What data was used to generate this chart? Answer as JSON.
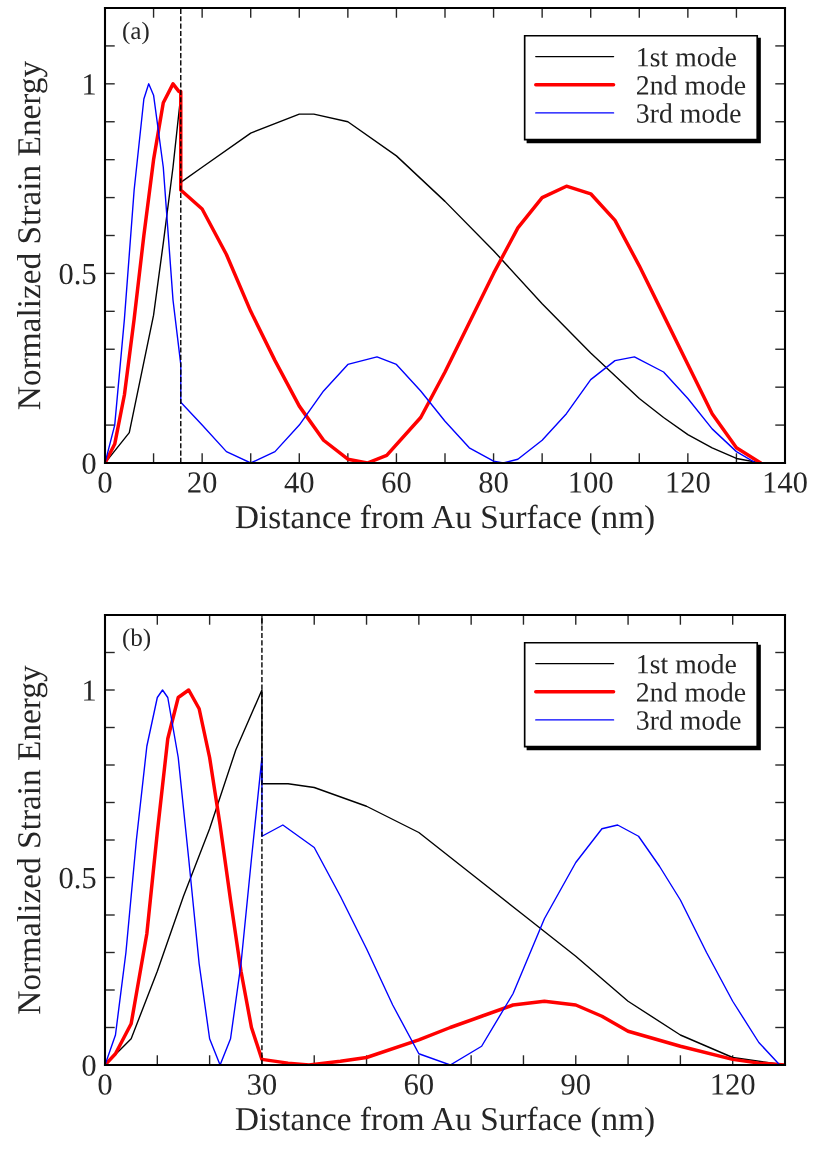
{
  "chart_data": [
    {
      "type": "line",
      "xlabel": "Distance from Au Surface (nm)",
      "ylabel": "Normalized Strain Energy",
      "annotations": [
        "(a)"
      ],
      "legend": "top right",
      "grid": false,
      "xlim": [
        0,
        140
      ],
      "ylim": [
        0,
        1.2
      ],
      "xticks": [
        0,
        {
          "value": 10,
          "label": null
        },
        20,
        {
          "value": 30,
          "label": null
        },
        40,
        {
          "value": 50,
          "label": null
        },
        60,
        {
          "value": 70,
          "label": null
        },
        80,
        {
          "value": 90,
          "label": null
        },
        100,
        {
          "value": 110,
          "label": null
        },
        120,
        {
          "value": 130,
          "label": null
        },
        140
      ],
      "yticks": [
        0,
        {
          "value": 0.1,
          "label": null
        },
        {
          "value": 0.2,
          "label": null
        },
        {
          "value": 0.3,
          "label": null
        },
        {
          "value": 0.4,
          "label": null
        },
        0.5,
        {
          "value": 0.6,
          "label": null
        },
        {
          "value": 0.7,
          "label": null
        },
        {
          "value": 0.8,
          "label": null
        },
        {
          "value": 0.9,
          "label": null
        },
        1,
        {
          "value": 1.1,
          "label": null
        },
        {
          "value": 1.2,
          "label": null
        }
      ],
      "ref_lines": [
        {
          "axis": "x",
          "value": 15.6,
          "color": "#000000",
          "line_style": "dashed"
        }
      ],
      "series": [
        {
          "name": "1st mode",
          "color": "#000000",
          "x": [
            0,
            5,
            10,
            12,
            14,
            15.6,
            15.6,
            20,
            30,
            40,
            43,
            50,
            60,
            70,
            80,
            90,
            100,
            105,
            110,
            115,
            120,
            125,
            130,
            135
          ],
          "values": [
            0,
            0.08,
            0.39,
            0.58,
            0.78,
            0.97,
            0.74,
            0.78,
            0.87,
            0.92,
            0.92,
            0.9,
            0.81,
            0.69,
            0.56,
            0.42,
            0.29,
            0.23,
            0.17,
            0.12,
            0.075,
            0.04,
            0.012,
            0
          ]
        },
        {
          "name": "2nd mode",
          "color": "#ff0000",
          "x": [
            0,
            2,
            4,
            6,
            8,
            10,
            12,
            14,
            15.2,
            15.6,
            15.6,
            20,
            25,
            30,
            35,
            40,
            45,
            50,
            54,
            58,
            65,
            70,
            75,
            80,
            85,
            90,
            95,
            100,
            105,
            110,
            115,
            120,
            125,
            130,
            135
          ],
          "values": [
            0,
            0.05,
            0.18,
            0.38,
            0.6,
            0.8,
            0.95,
            1.0,
            0.98,
            0.98,
            0.72,
            0.67,
            0.55,
            0.4,
            0.27,
            0.15,
            0.06,
            0.01,
            0,
            0.02,
            0.12,
            0.24,
            0.37,
            0.5,
            0.62,
            0.7,
            0.73,
            0.71,
            0.64,
            0.52,
            0.39,
            0.26,
            0.13,
            0.04,
            0
          ]
        },
        {
          "name": "3rd mode",
          "color": "#0000ff",
          "x": [
            0,
            2,
            4,
            6,
            8,
            9,
            10,
            12,
            14,
            15.6,
            15.6,
            20,
            25,
            30,
            35,
            40,
            45,
            50,
            56,
            60,
            65,
            70,
            75,
            80,
            82,
            85,
            90,
            95,
            100,
            105,
            109,
            115,
            120,
            125,
            130,
            134
          ],
          "values": [
            0,
            0.1,
            0.38,
            0.72,
            0.96,
            1.0,
            0.97,
            0.78,
            0.43,
            0.26,
            0.16,
            0.1,
            0.03,
            0,
            0.03,
            0.1,
            0.19,
            0.26,
            0.28,
            0.26,
            0.19,
            0.11,
            0.04,
            0.005,
            0,
            0.01,
            0.06,
            0.13,
            0.22,
            0.27,
            0.28,
            0.24,
            0.17,
            0.09,
            0.03,
            0
          ]
        }
      ]
    },
    {
      "type": "line",
      "xlabel": "Distance from Au Surface (nm)",
      "ylabel": "Normalized Strain Energy",
      "annotations": [
        "(b)"
      ],
      "legend": "top right",
      "grid": false,
      "xlim": [
        0,
        130
      ],
      "ylim": [
        0,
        1.2
      ],
      "xticks": [
        0,
        {
          "value": 10,
          "label": null
        },
        {
          "value": 20,
          "label": null
        },
        30,
        {
          "value": 40,
          "label": null
        },
        {
          "value": 50,
          "label": null
        },
        60,
        {
          "value": 70,
          "label": null
        },
        {
          "value": 80,
          "label": null
        },
        90,
        {
          "value": 100,
          "label": null
        },
        {
          "value": 110,
          "label": null
        },
        120,
        {
          "value": 130,
          "label": null
        }
      ],
      "yticks": [
        0,
        {
          "value": 0.1,
          "label": null
        },
        {
          "value": 0.2,
          "label": null
        },
        {
          "value": 0.3,
          "label": null
        },
        {
          "value": 0.4,
          "label": null
        },
        0.5,
        {
          "value": 0.6,
          "label": null
        },
        {
          "value": 0.7,
          "label": null
        },
        {
          "value": 0.8,
          "label": null
        },
        {
          "value": 0.9,
          "label": null
        },
        1,
        {
          "value": 1.1,
          "label": null
        },
        {
          "value": 1.2,
          "label": null
        }
      ],
      "ref_lines": [
        {
          "axis": "x",
          "value": 30,
          "color": "#000000",
          "line_style": "dashed"
        }
      ],
      "series": [
        {
          "name": "1st mode",
          "color": "#000000",
          "x": [
            0,
            5,
            10,
            15,
            20,
            25,
            30,
            30,
            35,
            40,
            50,
            60,
            70,
            80,
            90,
            100,
            110,
            115,
            120,
            125,
            130
          ],
          "values": [
            0,
            0.07,
            0.25,
            0.45,
            0.63,
            0.84,
            1.0,
            0.75,
            0.75,
            0.74,
            0.69,
            0.62,
            0.51,
            0.4,
            0.29,
            0.17,
            0.08,
            0.05,
            0.02,
            0.01,
            0
          ]
        },
        {
          "name": "2nd mode",
          "color": "#ff0000",
          "x": [
            0,
            2,
            5,
            8,
            10,
            12,
            14,
            16,
            18,
            20,
            22,
            24,
            26,
            28,
            30,
            35,
            39,
            45,
            50,
            60,
            66,
            72,
            78,
            84,
            90,
            95,
            100,
            110,
            120,
            125,
            130
          ],
          "values": [
            0,
            0.03,
            0.11,
            0.35,
            0.62,
            0.87,
            0.98,
            1.0,
            0.95,
            0.82,
            0.64,
            0.44,
            0.25,
            0.1,
            0.015,
            0.005,
            0,
            0.01,
            0.02,
            0.067,
            0.1,
            0.13,
            0.16,
            0.17,
            0.16,
            0.13,
            0.09,
            0.05,
            0.015,
            0.005,
            0
          ]
        },
        {
          "name": "3rd mode",
          "color": "#0000ff",
          "x": [
            0,
            2,
            4,
            6,
            8,
            10,
            11,
            12,
            14,
            16,
            18,
            20,
            22,
            24,
            26,
            28,
            30,
            30,
            34,
            40,
            45,
            50,
            55,
            60,
            66,
            72,
            78,
            84,
            90,
            95,
            98,
            102,
            106,
            110,
            115,
            120,
            125,
            129
          ],
          "values": [
            0,
            0.08,
            0.3,
            0.6,
            0.85,
            0.98,
            1.0,
            0.98,
            0.82,
            0.55,
            0.27,
            0.07,
            0,
            0.07,
            0.27,
            0.55,
            0.82,
            0.61,
            0.64,
            0.58,
            0.45,
            0.31,
            0.16,
            0.03,
            0,
            0.05,
            0.19,
            0.39,
            0.54,
            0.63,
            0.64,
            0.61,
            0.53,
            0.44,
            0.3,
            0.17,
            0.06,
            0
          ]
        }
      ]
    }
  ]
}
